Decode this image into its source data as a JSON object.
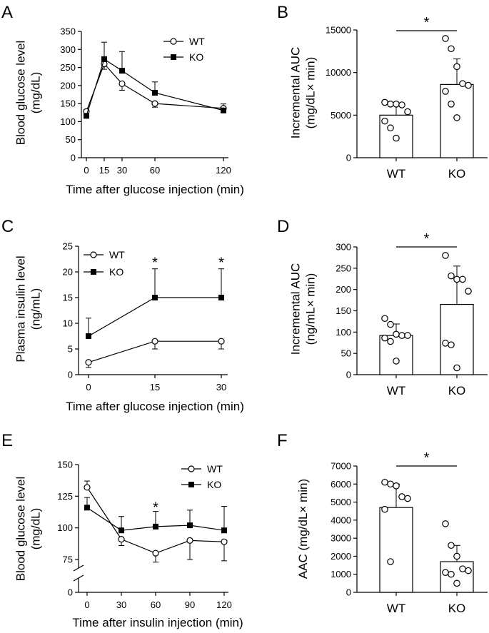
{
  "figure": {
    "panels": [
      "A",
      "B",
      "C",
      "D",
      "E",
      "F"
    ]
  },
  "chart_data": [
    {
      "id": "A",
      "type": "line",
      "ylabel_lines": [
        "Blood glucose level",
        "(mg/dL)"
      ],
      "xlabel": "Time after glucose injection (min)",
      "ylim": [
        0,
        350
      ],
      "yticks": [
        "0",
        "50",
        "100",
        "150",
        "200",
        "250",
        "300",
        "350"
      ],
      "xlim": [
        0,
        120
      ],
      "xticks": [
        "0",
        "15",
        "30",
        "60",
        "120"
      ],
      "x": [
        0,
        15,
        30,
        60,
        120
      ],
      "legend": [
        "WT",
        "KO"
      ],
      "legend_position": "top-right",
      "series": [
        {
          "name": "WT",
          "marker": "open-circle",
          "values": [
            128,
            260,
            205,
            150,
            137
          ],
          "errors": [
            5,
            15,
            18,
            10,
            12
          ]
        },
        {
          "name": "KO",
          "marker": "filled-square",
          "values": [
            116,
            273,
            241,
            180,
            131
          ],
          "errors": [
            5,
            47,
            53,
            30,
            5
          ]
        }
      ],
      "annotations": []
    },
    {
      "id": "B",
      "type": "bar",
      "ylabel_lines": [
        "Incremental AUC",
        "(mg/dL× min)"
      ],
      "categories": [
        "WT",
        "KO"
      ],
      "values": [
        5000,
        8600
      ],
      "errors": [
        1200,
        3000
      ],
      "ylim": [
        0,
        15000
      ],
      "yticks": [
        "0",
        "5000",
        "10000",
        "15000"
      ],
      "points": [
        [
          6500,
          6300,
          6300,
          6200,
          5400,
          4300,
          3500,
          2300
        ],
        [
          14000,
          12800,
          10700,
          8700,
          8500,
          7800,
          6300,
          4700
        ]
      ],
      "significance": "*"
    },
    {
      "id": "C",
      "type": "line",
      "ylabel_lines": [
        "Plasma insulin level",
        "(ng/mL)"
      ],
      "xlabel": "Time after glucose injection (min)",
      "ylim": [
        0,
        25
      ],
      "yticks": [
        "0",
        "5",
        "10",
        "15",
        "20",
        "25"
      ],
      "xlim": [
        0,
        30
      ],
      "xticks": [
        "0",
        "15",
        "30"
      ],
      "x": [
        0,
        15,
        30
      ],
      "legend": [
        "WT",
        "KO"
      ],
      "legend_position": "top-left",
      "series": [
        {
          "name": "WT",
          "marker": "open-circle",
          "values": [
            2.4,
            6.5,
            6.5
          ],
          "errors": [
            1,
            1.5,
            1.5
          ]
        },
        {
          "name": "KO",
          "marker": "filled-square",
          "values": [
            7.5,
            15,
            15
          ],
          "errors": [
            3.5,
            5.6,
            5.6
          ]
        }
      ],
      "annotations": [
        {
          "x": 15,
          "y": 22,
          "text": "*"
        },
        {
          "x": 30,
          "y": 22,
          "text": "*"
        }
      ]
    },
    {
      "id": "D",
      "type": "bar",
      "ylabel_lines": [
        "Incremental AUC",
        "(ng/mL× min)"
      ],
      "categories": [
        "WT",
        "KO"
      ],
      "values": [
        92,
        165
      ],
      "errors": [
        27,
        90
      ],
      "ylim": [
        0,
        300
      ],
      "yticks": [
        "0",
        "50",
        "100",
        "150",
        "200",
        "250",
        "300"
      ],
      "points": [
        [
          132,
          118,
          95,
          92,
          92,
          86,
          78,
          32
        ],
        [
          280,
          232,
          224,
          224,
          196,
          74,
          70,
          16
        ]
      ],
      "significance": "*"
    },
    {
      "id": "E",
      "type": "line",
      "ylabel_lines": [
        "Blood glucose level",
        "(mg/dL)"
      ],
      "xlabel": "Time after insulin injection (min)",
      "ylim": [
        0,
        150
      ],
      "yticks": [
        "0",
        "75",
        "100",
        "125",
        "150"
      ],
      "axis_break": [
        0,
        75
      ],
      "xlim": [
        0,
        120
      ],
      "xticks": [
        "0",
        "30",
        "60",
        "90",
        "120"
      ],
      "x": [
        0,
        30,
        60,
        90,
        120
      ],
      "legend": [
        "WT",
        "KO"
      ],
      "legend_position": "top-right",
      "series": [
        {
          "name": "WT",
          "marker": "open-circle",
          "values": [
            132,
            91,
            80,
            90,
            89
          ],
          "errors": [
            5,
            5,
            11,
            15,
            17
          ]
        },
        {
          "name": "KO",
          "marker": "filled-square",
          "values": [
            116,
            98,
            101,
            102,
            98
          ],
          "errors": [
            8,
            11,
            12,
            12,
            19
          ]
        }
      ],
      "annotations": [
        {
          "x": 60,
          "y": 117,
          "text": "*"
        }
      ]
    },
    {
      "id": "F",
      "type": "bar",
      "ylabel_lines": [
        "AAC (mg/dL× min)"
      ],
      "categories": [
        "WT",
        "KO"
      ],
      "values": [
        4700,
        1700
      ],
      "errors": [
        1300,
        900
      ],
      "ylim": [
        0,
        7000
      ],
      "yticks": [
        "0",
        "1000",
        "2000",
        "3000",
        "4000",
        "5000",
        "6000",
        "7000"
      ],
      "points": [
        [
          6100,
          6000,
          5900,
          5300,
          5200,
          4600,
          1700
        ],
        [
          3800,
          2600,
          2000,
          1300,
          1200,
          1100,
          1000,
          500
        ]
      ],
      "significance": "*"
    }
  ]
}
